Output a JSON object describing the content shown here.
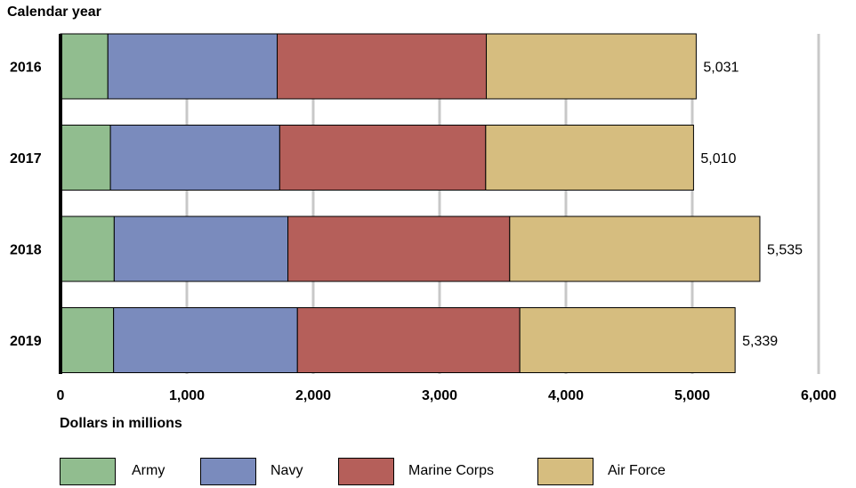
{
  "chart_data": {
    "type": "bar",
    "orientation": "horizontal",
    "stacked": true,
    "ylabel": "Calendar year",
    "xlabel": "Dollars in millions",
    "categories": [
      "2016",
      "2017",
      "2018",
      "2019"
    ],
    "series": [
      {
        "name": "Army",
        "color": "#91bd8f",
        "values": [
          375,
          395,
          425,
          420
        ]
      },
      {
        "name": "Navy",
        "color": "#7a8bbd",
        "values": [
          1340,
          1340,
          1375,
          1455
        ]
      },
      {
        "name": "Marine Corps",
        "color": "#b55f5a",
        "values": [
          1655,
          1630,
          1755,
          1760
        ]
      },
      {
        "name": "Air Force",
        "color": "#d6bd7f",
        "values": [
          1661,
          1645,
          1980,
          1704
        ]
      }
    ],
    "totals": [
      "5,031",
      "5,010",
      "5,535",
      "5,339"
    ],
    "xlim": [
      0,
      6000
    ],
    "xticks": [
      0,
      1000,
      2000,
      3000,
      4000,
      5000,
      6000
    ],
    "xtick_labels": [
      "0",
      "1,000",
      "2,000",
      "3,000",
      "4,000",
      "5,000",
      "6,000"
    ],
    "grid": true,
    "legend_position": "bottom"
  }
}
